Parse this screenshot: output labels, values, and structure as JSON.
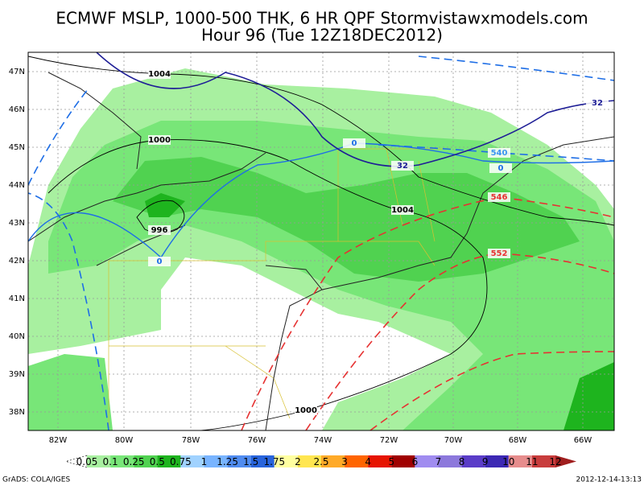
{
  "header": {
    "title": "ECMWF MSLP, 1000-500 THK, 6 HR QPF Stormvistawxmodels.com",
    "subtitle": "Hour 96 (Tue 12Z18DEC2012)"
  },
  "map": {
    "lat_labels": [
      "47N",
      "46N",
      "45N",
      "44N",
      "43N",
      "42N",
      "41N",
      "40N",
      "39N",
      "38N"
    ],
    "lon_labels": [
      "82W",
      "80W",
      "78W",
      "76W",
      "74W",
      "72W",
      "70W",
      "68W",
      "66W"
    ],
    "contour_labels": [
      "1004",
      "1000",
      "996",
      "1004",
      "1000",
      "0",
      "0",
      "0",
      "32",
      "32",
      "540",
      "546",
      "552"
    ]
  },
  "colorbar": {
    "labels": [
      "0.05",
      "0.1",
      "0.25",
      "0.5",
      "0.75",
      "1",
      "1.25",
      "1.5",
      "1.75",
      "2",
      "2.5",
      "3",
      "4",
      "5",
      "6",
      "7",
      "8",
      "9",
      "10",
      "11",
      "12"
    ],
    "colors": [
      "#a8f0a0",
      "#78e678",
      "#50d250",
      "#1eb41e",
      "#a0d2ff",
      "#78b4ff",
      "#508cf0",
      "#2864dc",
      "#ffffa0",
      "#ffe650",
      "#ffaa28",
      "#ff6400",
      "#e61400",
      "#a00000",
      "#a08cf0",
      "#8c78dc",
      "#5a3cc8",
      "#3c28b4",
      "#e68c8c",
      "#c83c3c",
      "#a01e1e"
    ]
  },
  "footer": {
    "credit": "GrADS: COLA/IGES",
    "timestamp": "2012-12-14-13:13"
  }
}
